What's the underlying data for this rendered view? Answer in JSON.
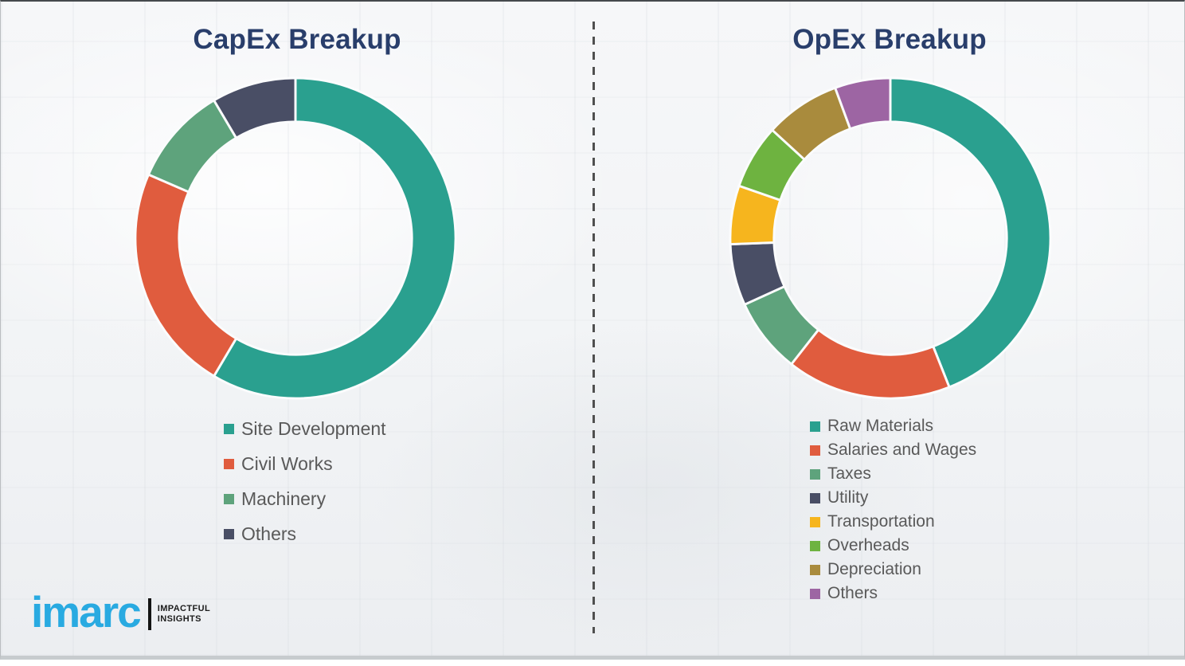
{
  "page": {
    "background_color": "#f3f4f6",
    "divider_color": "#4f4f4f",
    "title_color": "#293e6b",
    "legend_text_color": "#595959"
  },
  "chart_data": [
    {
      "type": "pie",
      "variant": "donut",
      "title": "CapEx Breakup",
      "categories": [
        "Site Development",
        "Civil Works",
        "Machinery",
        "Others"
      ],
      "values": [
        58.5,
        23,
        10,
        8.5
      ],
      "unit": "percent-estimated-from-arc-angles",
      "colors": [
        "#2aa08f",
        "#e05c3e",
        "#5ea37c",
        "#494e65"
      ],
      "start_angle_deg": 0,
      "direction": "clockwise",
      "legend_position": "below-left"
    },
    {
      "type": "pie",
      "variant": "donut",
      "title": "OpEx Breakup",
      "categories": [
        "Raw Materials",
        "Salaries and Wages",
        "Taxes",
        "Utility",
        "Transportation",
        "Overheads",
        "Depreciation",
        "Others"
      ],
      "values": [
        44,
        16.6,
        7.6,
        6.2,
        5.9,
        6.5,
        7.6,
        5.6
      ],
      "unit": "percent-estimated-from-arc-angles",
      "colors": [
        "#2aa08f",
        "#e05c3e",
        "#5ea37c",
        "#494e65",
        "#f6b51e",
        "#6eb340",
        "#a98b3d",
        "#9d65a3"
      ],
      "start_angle_deg": 0,
      "direction": "clockwise",
      "legend_position": "below-left"
    }
  ],
  "logo": {
    "brand": "imarc",
    "tagline": [
      "IMPACTFUL",
      "INSIGHTS"
    ],
    "brand_color": "#29aae1"
  }
}
